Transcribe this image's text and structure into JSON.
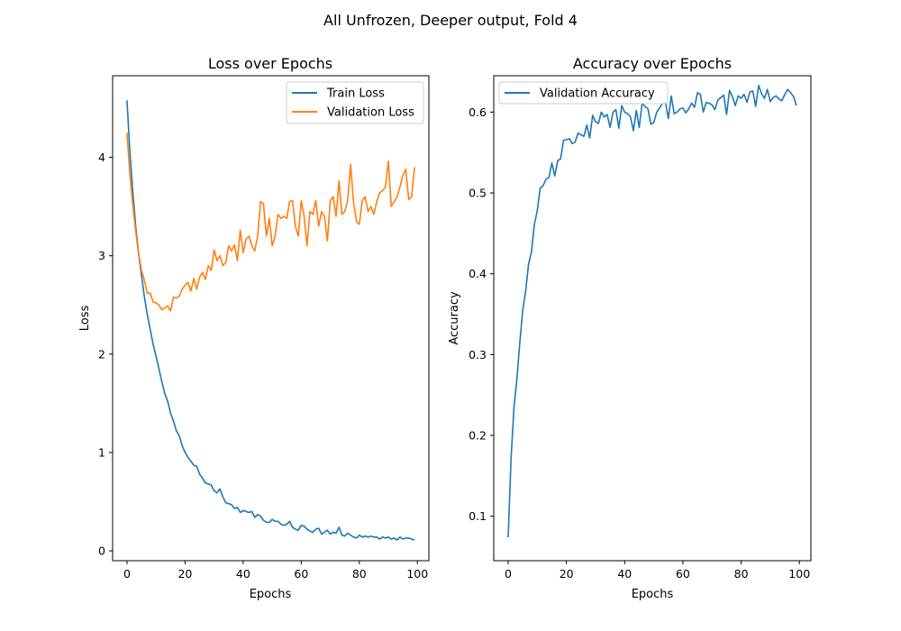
{
  "figure": {
    "suptitle": "All Unfrozen, Deeper output, Fold 4"
  },
  "chart_data": [
    {
      "type": "line",
      "title": "Loss over Epochs",
      "xlabel": "Epochs",
      "ylabel": "Loss",
      "xlim": [
        -4.95,
        103.95
      ],
      "ylim": [
        -0.1,
        4.83
      ],
      "xticks": [
        0,
        20,
        40,
        60,
        80,
        100
      ],
      "yticks": [
        0,
        1,
        2,
        3,
        4
      ],
      "grid": false,
      "legend_position": "upper right",
      "series": [
        {
          "name": "Train Loss",
          "color": "#1f77b4",
          "values": [
            4.58,
            4.05,
            3.65,
            3.3,
            3.02,
            2.8,
            2.58,
            2.4,
            2.25,
            2.1,
            1.98,
            1.85,
            1.72,
            1.6,
            1.52,
            1.4,
            1.32,
            1.22,
            1.17,
            1.07,
            1.0,
            0.95,
            0.91,
            0.87,
            0.86,
            0.78,
            0.74,
            0.69,
            0.68,
            0.67,
            0.61,
            0.59,
            0.63,
            0.55,
            0.49,
            0.48,
            0.47,
            0.43,
            0.44,
            0.39,
            0.41,
            0.4,
            0.39,
            0.4,
            0.34,
            0.37,
            0.35,
            0.31,
            0.29,
            0.29,
            0.32,
            0.3,
            0.3,
            0.27,
            0.26,
            0.27,
            0.3,
            0.24,
            0.22,
            0.21,
            0.26,
            0.25,
            0.22,
            0.2,
            0.19,
            0.22,
            0.23,
            0.17,
            0.19,
            0.21,
            0.17,
            0.19,
            0.18,
            0.24,
            0.16,
            0.15,
            0.18,
            0.16,
            0.14,
            0.13,
            0.16,
            0.14,
            0.15,
            0.14,
            0.15,
            0.14,
            0.14,
            0.12,
            0.14,
            0.13,
            0.14,
            0.12,
            0.13,
            0.11,
            0.14,
            0.12,
            0.13,
            0.13,
            0.12,
            0.11
          ]
        },
        {
          "name": "Validation Loss",
          "color": "#ff7f0e",
          "values": [
            4.25,
            3.82,
            3.52,
            3.25,
            3.02,
            2.85,
            2.75,
            2.62,
            2.62,
            2.53,
            2.52,
            2.5,
            2.45,
            2.47,
            2.49,
            2.44,
            2.58,
            2.57,
            2.59,
            2.66,
            2.7,
            2.73,
            2.64,
            2.77,
            2.66,
            2.78,
            2.83,
            2.76,
            2.9,
            2.85,
            3.06,
            2.95,
            3.0,
            2.9,
            2.93,
            3.1,
            3.05,
            3.11,
            2.95,
            3.26,
            3.03,
            3.17,
            3.2,
            3.1,
            3.05,
            3.2,
            3.55,
            3.53,
            3.2,
            3.38,
            3.1,
            3.2,
            3.42,
            3.38,
            3.4,
            3.38,
            3.55,
            3.56,
            3.3,
            3.2,
            3.56,
            3.4,
            3.1,
            3.45,
            3.42,
            3.56,
            3.3,
            3.45,
            3.4,
            3.15,
            3.56,
            3.6,
            3.4,
            3.76,
            3.42,
            3.45,
            3.56,
            3.93,
            3.55,
            3.35,
            3.32,
            3.56,
            3.6,
            3.45,
            3.5,
            3.42,
            3.55,
            3.64,
            3.66,
            3.7,
            3.96,
            3.5,
            3.55,
            3.6,
            3.7,
            3.82,
            3.88,
            3.57,
            3.6,
            3.9
          ]
        }
      ]
    },
    {
      "type": "line",
      "title": "Accuracy over Epochs",
      "xlabel": "Epochs",
      "ylabel": "Accuracy",
      "xlim": [
        -4.95,
        103.95
      ],
      "ylim": [
        0.045,
        0.645
      ],
      "xticks": [
        0,
        20,
        40,
        60,
        80,
        100
      ],
      "yticks": [
        0.1,
        0.2,
        0.3,
        0.4,
        0.5,
        0.6
      ],
      "ytick_labels": [
        "0.1",
        "0.2",
        "0.3",
        "0.4",
        "0.5",
        "0.6"
      ],
      "grid": false,
      "legend_position": "upper left",
      "series": [
        {
          "name": "Validation Accuracy",
          "color": "#1f77b4",
          "values": [
            0.074,
            0.172,
            0.235,
            0.27,
            0.315,
            0.355,
            0.378,
            0.412,
            0.427,
            0.461,
            0.478,
            0.506,
            0.509,
            0.517,
            0.519,
            0.537,
            0.521,
            0.54,
            0.542,
            0.565,
            0.566,
            0.567,
            0.561,
            0.563,
            0.574,
            0.572,
            0.57,
            0.584,
            0.568,
            0.596,
            0.588,
            0.586,
            0.6,
            0.594,
            0.597,
            0.581,
            0.6,
            0.603,
            0.58,
            0.608,
            0.6,
            0.598,
            0.594,
            0.577,
            0.602,
            0.581,
            0.611,
            0.607,
            0.604,
            0.585,
            0.587,
            0.6,
            0.605,
            0.611,
            0.612,
            0.592,
            0.62,
            0.598,
            0.6,
            0.604,
            0.605,
            0.599,
            0.604,
            0.611,
            0.606,
            0.624,
            0.622,
            0.6,
            0.612,
            0.611,
            0.609,
            0.603,
            0.615,
            0.618,
            0.621,
            0.597,
            0.627,
            0.619,
            0.608,
            0.62,
            0.617,
            0.622,
            0.612,
            0.625,
            0.626,
            0.607,
            0.633,
            0.623,
            0.617,
            0.628,
            0.613,
            0.618,
            0.62,
            0.616,
            0.614,
            0.622,
            0.628,
            0.624,
            0.619,
            0.608
          ]
        }
      ]
    }
  ]
}
